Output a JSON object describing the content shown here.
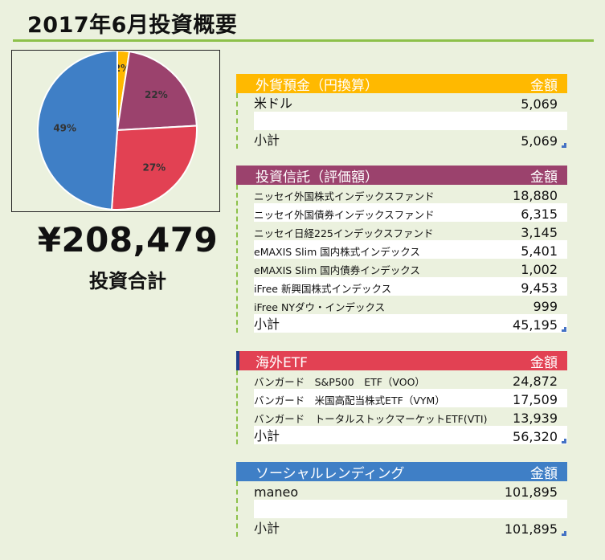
{
  "title": "2017年6月投資概要",
  "total": {
    "amount": "¥208,479",
    "label": "投資合計"
  },
  "colors": {
    "fx": "#ffb900",
    "fund": "#9b426d",
    "etf": "#e24153",
    "lending": "#3f7fc6",
    "accent": "#8dc14a"
  },
  "chart_data": {
    "type": "pie",
    "slices": [
      {
        "label": "2%",
        "value": 5069,
        "color": "#ffb900"
      },
      {
        "label": "22%",
        "value": 45195,
        "color": "#9b426d"
      },
      {
        "label": "27%",
        "value": 56320,
        "color": "#e24153"
      },
      {
        "label": "49%",
        "value": 101895,
        "color": "#3f7fc6"
      }
    ]
  },
  "sections": {
    "fx": {
      "title": "外貨預金（円換算）",
      "amount_header": "金額",
      "rows": [
        {
          "label": "米ドル",
          "value": "5,069"
        },
        {
          "label": "",
          "value": ""
        }
      ],
      "subtotal": {
        "label": "小計",
        "value": "5,069"
      }
    },
    "fund": {
      "title": "投資信託（評価額）",
      "amount_header": "金額",
      "rows": [
        {
          "label": "ニッセイ外国株式インデックスファンド",
          "value": "18,880"
        },
        {
          "label": "ニッセイ外国債券インデックスファンド",
          "value": "6,315"
        },
        {
          "label": "ニッセイ日経225インデックスファンド",
          "value": "3,145"
        },
        {
          "label": "eMAXIS Slim 国内株式インデックス",
          "value": "5,401"
        },
        {
          "label": "eMAXIS Slim 国内債券インデックス",
          "value": "1,002"
        },
        {
          "label": "iFree 新興国株式インデックス",
          "value": "9,453"
        },
        {
          "label": "iFree NYダウ・インデックス",
          "value": "999"
        }
      ],
      "subtotal": {
        "label": "小計",
        "value": "45,195"
      }
    },
    "etf": {
      "title": "海外ETF",
      "amount_header": "金額",
      "rows": [
        {
          "label": "バンガード　S&P500　ETF（VOO）",
          "value": "24,872"
        },
        {
          "label": "バンガード　米国高配当株式ETF（VYM）",
          "value": "17,509"
        },
        {
          "label": "バンガード　トータルストックマーケットETF(VTI)",
          "value": "13,939"
        }
      ],
      "subtotal": {
        "label": "小計",
        "value": "56,320"
      }
    },
    "lending": {
      "title": "ソーシャルレンディング",
      "amount_header": "金額",
      "rows": [
        {
          "label": "maneo",
          "value": "101,895"
        },
        {
          "label": "",
          "value": ""
        }
      ],
      "subtotal": {
        "label": "小計",
        "value": "101,895"
      }
    }
  }
}
